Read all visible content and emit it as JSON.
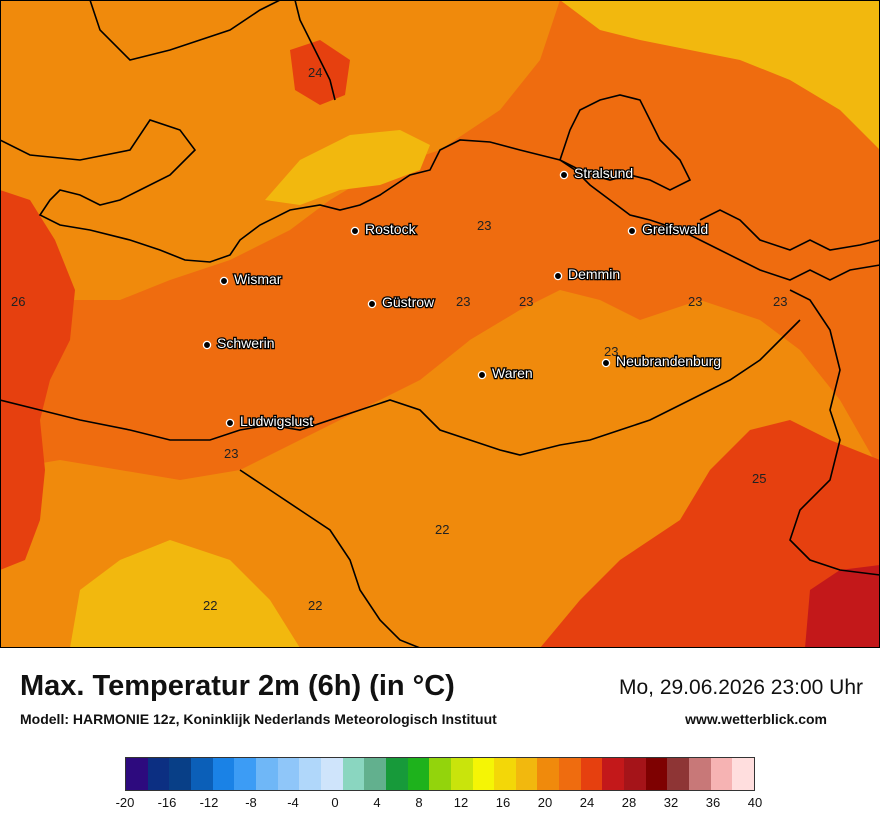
{
  "title": "Max. Temperatur 2m (6h) (in °C)",
  "subtitle": "Modell: HARMONIE 12z, Koninklijk Nederlands Meteorologisch Instituut",
  "datetime": "Mo, 29.06.2026 23:00 Uhr",
  "website": "www.wetterblick.com",
  "legend": {
    "colors": [
      "#2d0a7e",
      "#0c2f82",
      "#083f87",
      "#0b5fb8",
      "#1a82e6",
      "#3c9cf5",
      "#6fb7f7",
      "#8fc6f9",
      "#b0d7fa",
      "#cfe4fb",
      "#8ad6c0",
      "#62b08e",
      "#179a3a",
      "#1eb21c",
      "#93d40c",
      "#c9e40c",
      "#f5f505",
      "#f3d708",
      "#f2b80e",
      "#f08a0c",
      "#ef6c0f",
      "#e6400f",
      "#c3181a",
      "#a51419",
      "#7e0101",
      "#8e3535",
      "#c87878",
      "#f6b3b3",
      "#ffdede"
    ],
    "ticks": [
      "-20",
      "-16",
      "-12",
      "-8",
      "-4",
      "0",
      "4",
      "8",
      "12",
      "16",
      "20",
      "24",
      "28",
      "32",
      "36",
      "40"
    ]
  },
  "map": {
    "zone_colors": {
      "c20": "#f2b80e",
      "c22": "#f08a0c",
      "c23": "#ef6c0f",
      "c25": "#e6400f",
      "c27": "#c3181a",
      "c19": "#f3d708",
      "c24": "#e6400f"
    },
    "cities": [
      {
        "name": "Stralsund"
      },
      {
        "name": "Rostock"
      },
      {
        "name": "Greifswald"
      },
      {
        "name": "Demmin"
      },
      {
        "name": "Wismar"
      },
      {
        "name": "Güstrow"
      },
      {
        "name": "Schwerin"
      },
      {
        "name": "Neubrandenburg"
      },
      {
        "name": "Waren"
      },
      {
        "name": "Ludwigslust"
      }
    ],
    "values": [
      "24",
      "23",
      "26",
      "23",
      "23",
      "23",
      "23",
      "23",
      "23",
      "25",
      "22",
      "22",
      "22"
    ]
  }
}
